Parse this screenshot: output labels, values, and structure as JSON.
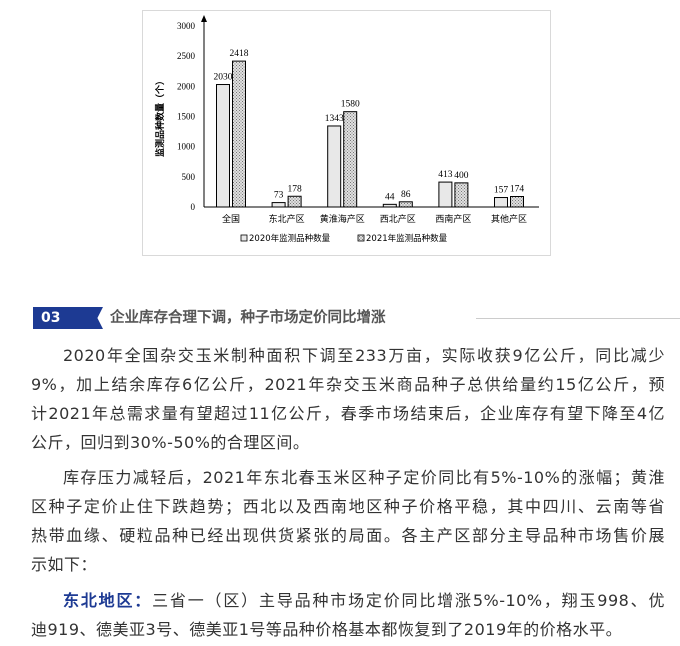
{
  "chart_data": {
    "type": "bar",
    "categories": [
      "全国",
      "东北产区",
      "黄淮海产区",
      "西北产区",
      "西南产区",
      "其他产区"
    ],
    "series": [
      {
        "name": "2020年监测品种数量",
        "values": [
          2030,
          73,
          1343,
          44,
          413,
          157
        ],
        "color": "#e8e8e8",
        "pattern": "solid"
      },
      {
        "name": "2021年监测品种数量",
        "values": [
          2418,
          178,
          1580,
          86,
          400,
          174
        ],
        "color": "#cfcfcf",
        "pattern": "crosshatch"
      }
    ],
    "ylabel": "监测品种数量（个）",
    "yticks": [
      0,
      500,
      1000,
      1500,
      2000,
      2500,
      3000
    ],
    "ylim": [
      0,
      3000
    ],
    "grid": false,
    "legend": "bottom"
  },
  "section": {
    "number": "03",
    "title": "企业库存合理下调，种子市场定价同比增涨"
  },
  "paragraphs": [
    {
      "lines": [
        "2020年全国杂交玉米制种面积下调至233万亩，实际收获9亿公斤，同比减少",
        "9%，加上结余库存6亿公斤，2021年杂交玉米商品种子总供给量约15亿公斤，预",
        "计2021年总需求量有望超过11亿公斤，春季市场结束后，企业库存有望下降至4亿",
        "公斤，回归到30%-50%的合理区间。"
      ]
    },
    {
      "lines": [
        "库存压力减轻后，2021年东北春玉米区种子定价同比有5%-10%的涨幅；黄淮",
        "区种子定价止住下跌趋势；西北以及西南地区种子价格平稳，其中四川、云南等省",
        "热带血缘、硬粒品种已经出现供货紧张的局面。各主产区部分主导品种市场售价展",
        "示如下："
      ]
    },
    {
      "highlight": "东北地区：",
      "lines": [
        "三省一（区）主导品种市场定价同比增涨5%-10%，翔玉998、优",
        "迪919、德美亚3号、德美亚1号等品种价格基本都恢复到了2019年的价格水平。"
      ]
    }
  ]
}
